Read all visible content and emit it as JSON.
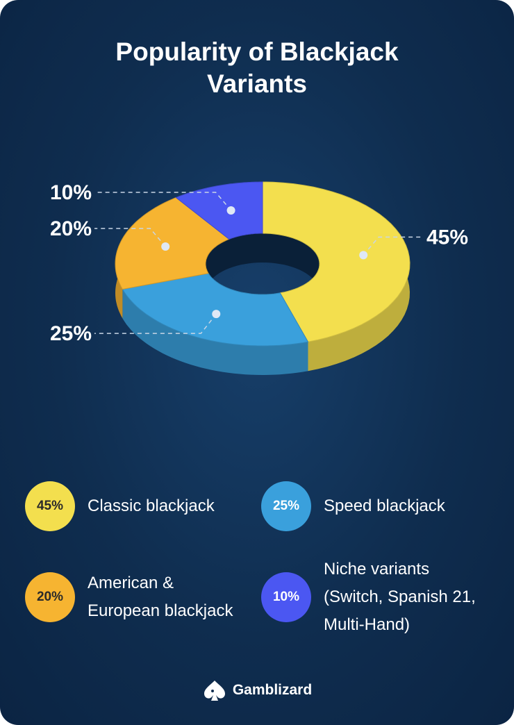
{
  "chart_data": {
    "type": "pie",
    "title": "Popularity of Blackjack Variants",
    "categories": [
      "Classic blackjack",
      "Speed blackjack",
      "American & European blackjack",
      "Niche variants (Switch, Spanish 21, Multi-Hand)"
    ],
    "values": [
      45,
      25,
      20,
      10
    ],
    "value_labels": [
      "45%",
      "25%",
      "20%",
      "10%"
    ],
    "colors": [
      "#f3df4e",
      "#3aa0dc",
      "#f6b431",
      "#4b57f2"
    ]
  },
  "brand": "Gamblizard"
}
